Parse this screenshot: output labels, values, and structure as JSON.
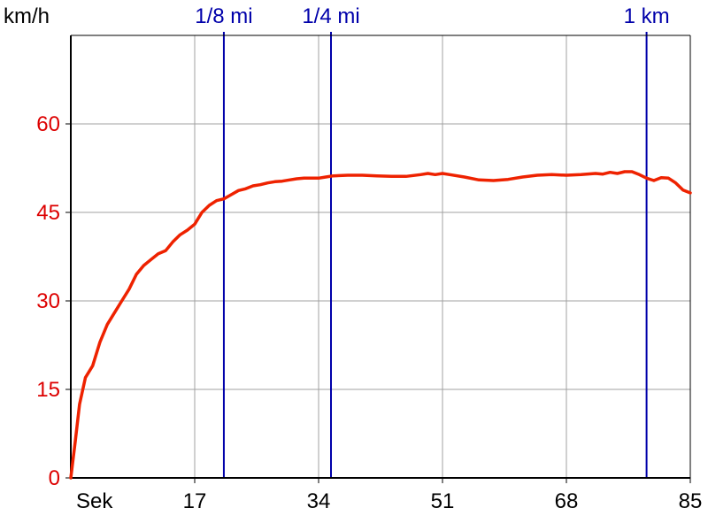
{
  "chart_data": {
    "type": "line",
    "title": "",
    "xlabel": "Sek",
    "ylabel": "km/h",
    "xlim": [
      0,
      85
    ],
    "ylim": [
      0,
      75
    ],
    "x_ticks": [
      17,
      34,
      51,
      68,
      85
    ],
    "y_ticks": [
      0,
      15,
      30,
      45,
      60
    ],
    "grid": true,
    "colors": {
      "line": "#ee2200",
      "axis_label": "#dd0000",
      "marker": "#0000aa",
      "grid": "#a0a0a0",
      "frame": "#000000"
    },
    "distance_markers": [
      {
        "label": "1/8 mi",
        "x": 21.0
      },
      {
        "label": "1/4 mi",
        "x": 35.7
      },
      {
        "label": "1 km",
        "x": 79.0
      }
    ],
    "series": [
      {
        "x": [
          0,
          0.6,
          1.2,
          2.0,
          3.0,
          4.0,
          5.0,
          6.0,
          7.0,
          8.0,
          9.0,
          10.0,
          11.0,
          12.0,
          13.0,
          14.0,
          15.0,
          16.0,
          17.0,
          18.0,
          19.0,
          20.0,
          21.0,
          22.0,
          23.0,
          24.0,
          25.0,
          26.0,
          27.0,
          28.0,
          29.0,
          30.0,
          31.0,
          32.0,
          33.0,
          34.0,
          35.0,
          36.0,
          38.0,
          40.0,
          42.0,
          44.0,
          46.0,
          48.0,
          49.0,
          50.0,
          51.0,
          52.0,
          54.0,
          56.0,
          58.0,
          60.0,
          62.0,
          64.0,
          66.0,
          68.0,
          70.0,
          72.0,
          73.0,
          74.0,
          75.0,
          76.0,
          77.0,
          78.0,
          79.0,
          80.0,
          81.0,
          82.0,
          83.0,
          84.0,
          85.0
        ],
        "y": [
          0,
          6,
          12.5,
          17,
          19,
          23,
          26,
          28,
          30,
          32,
          34.5,
          36,
          37,
          38,
          38.5,
          40,
          41.2,
          42,
          43,
          45,
          46.2,
          47,
          47.3,
          48,
          48.7,
          49,
          49.5,
          49.7,
          50,
          50.2,
          50.3,
          50.5,
          50.7,
          50.8,
          50.8,
          50.8,
          51.0,
          51.2,
          51.3,
          51.3,
          51.2,
          51.1,
          51.1,
          51.4,
          51.6,
          51.4,
          51.6,
          51.4,
          51.0,
          50.5,
          50.4,
          50.6,
          51.0,
          51.3,
          51.4,
          51.3,
          51.4,
          51.6,
          51.5,
          51.8,
          51.6,
          51.9,
          51.9,
          51.4,
          50.8,
          50.4,
          50.9,
          50.8,
          50.0,
          48.8,
          48.3
        ]
      }
    ]
  }
}
